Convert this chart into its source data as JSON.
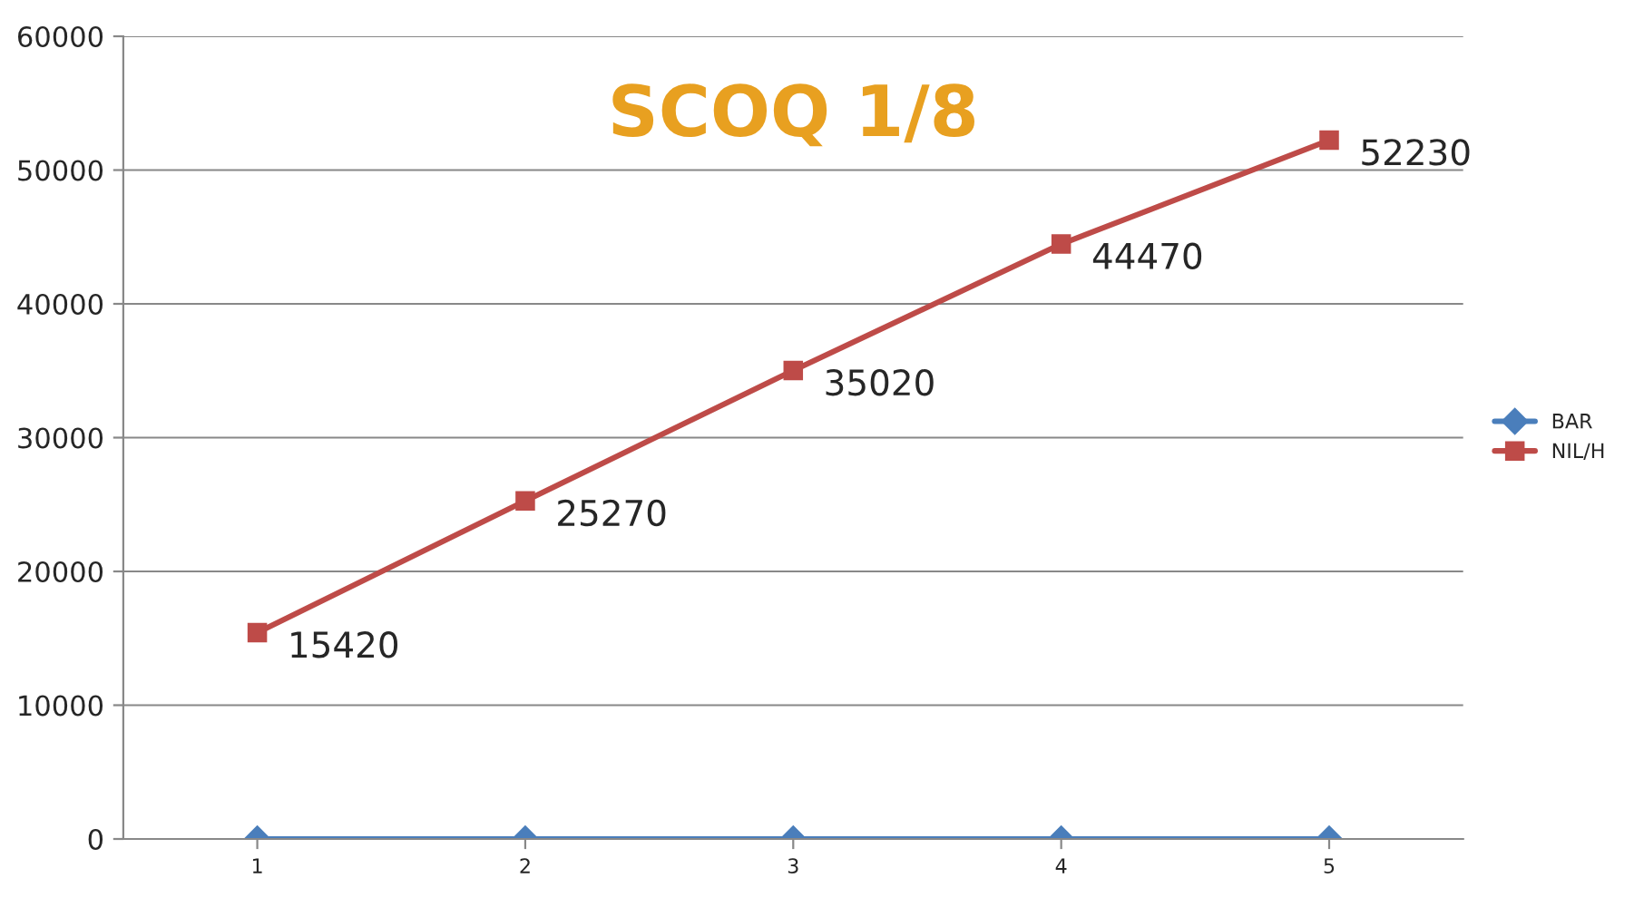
{
  "chart_data": {
    "type": "line",
    "title": "SCOQ 1/8",
    "categories": [
      "1",
      "2",
      "3",
      "4",
      "5"
    ],
    "series": [
      {
        "name": "BAR",
        "color": "#4a7ebb",
        "marker": "diamond",
        "values": [
          0,
          0,
          0,
          0,
          0
        ]
      },
      {
        "name": "NIL/H",
        "color": "#be4b48",
        "marker": "square",
        "values": [
          15420,
          25270,
          35020,
          44470,
          52230
        ],
        "value_labels": [
          "15420",
          "25270",
          "35020",
          "44470",
          "52230"
        ]
      }
    ],
    "ylim": [
      0,
      60000
    ],
    "yticks": [
      0,
      10000,
      20000,
      30000,
      40000,
      50000,
      60000
    ],
    "grid": "y",
    "legend": "right",
    "line_style": "solid"
  }
}
